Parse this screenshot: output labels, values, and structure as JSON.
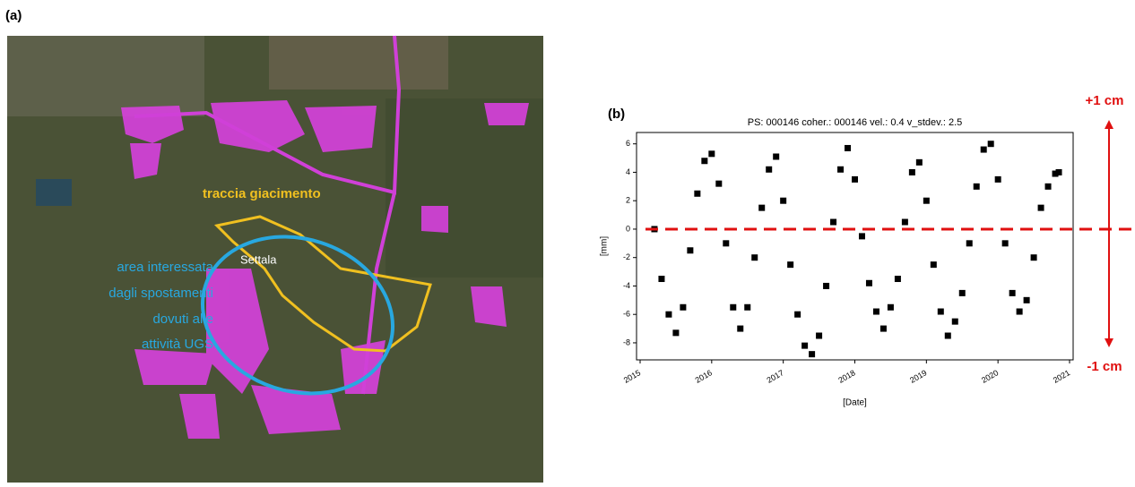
{
  "panel_a": {
    "label": "(a)",
    "annotations": {
      "field_trace": "traccia giacimento",
      "town": "Settala",
      "area_lines": [
        "area interessata",
        "dagli spostamenti",
        "dovuti alle",
        "attività UGS"
      ]
    }
  },
  "panel_b": {
    "label": "(b)",
    "upper_label": "+1 cm",
    "lower_label": "-1 cm"
  },
  "chart_data": {
    "type": "scatter",
    "title": "PS: 000146 coher.: 000146 vel.: 0.4 v_stdev.: 2.5",
    "x_label": "[Date]",
    "y_label": "[mm]",
    "color": "#000000",
    "reference_line": 0,
    "reference_color": "#e01010",
    "x": [
      2015.2,
      2015.3,
      2015.4,
      2015.5,
      2015.6,
      2015.7,
      2015.8,
      2015.9,
      2016.0,
      2016.1,
      2016.2,
      2016.3,
      2016.4,
      2016.5,
      2016.6,
      2016.7,
      2016.8,
      2016.9,
      2017.0,
      2017.1,
      2017.2,
      2017.3,
      2017.4,
      2017.5,
      2017.6,
      2017.7,
      2017.8,
      2017.9,
      2018.0,
      2018.1,
      2018.2,
      2018.3,
      2018.4,
      2018.5,
      2018.6,
      2018.7,
      2018.8,
      2018.9,
      2019.0,
      2019.1,
      2019.2,
      2019.3,
      2019.4,
      2019.5,
      2019.6,
      2019.7,
      2019.8,
      2019.9,
      2020.0,
      2020.1,
      2020.2,
      2020.3,
      2020.4,
      2020.5,
      2020.6,
      2020.7,
      2020.8,
      2020.85
    ],
    "values": [
      0,
      -3.5,
      -6,
      -7.3,
      -5.5,
      -1.5,
      2.5,
      4.8,
      5.3,
      3.2,
      -1,
      -5.5,
      -7,
      -5.5,
      -2,
      1.5,
      4.2,
      5.1,
      2,
      -2.5,
      -6,
      -8.2,
      -8.8,
      -7.5,
      -4,
      0.5,
      4.2,
      5.7,
      3.5,
      -0.5,
      -3.8,
      -5.8,
      -7,
      -5.5,
      -3.5,
      0.5,
      4,
      4.7,
      2,
      -2.5,
      -5.8,
      -7.5,
      -6.5,
      -4.5,
      -1,
      3,
      5.6,
      6,
      3.5,
      -1,
      -4.5,
      -5.8,
      -5,
      -2,
      1.5,
      3,
      3.9,
      4
    ],
    "xlim": [
      2014.95,
      2021.05
    ],
    "xticks": [
      2015,
      2016,
      2017,
      2018,
      2019,
      2020,
      2021
    ],
    "ylim": [
      -9.2,
      6.8
    ],
    "yticks": [
      -8,
      -6,
      -4,
      -2,
      0,
      2,
      4,
      6
    ]
  }
}
